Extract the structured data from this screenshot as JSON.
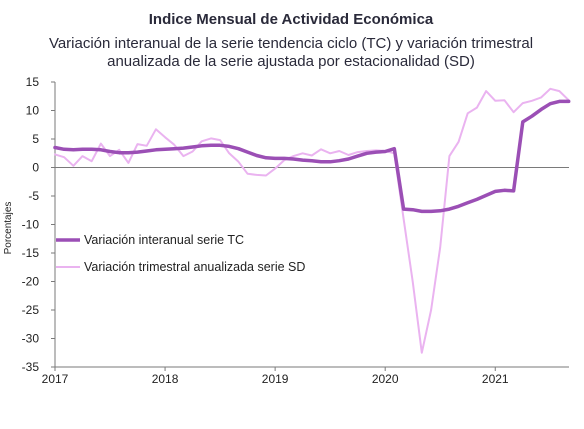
{
  "chart_data": {
    "type": "line",
    "title": "Indice Mensual de  Actividad Económica",
    "subtitle_lines": [
      "Variación interanual de la serie tendencia ciclo (TC) y variación trimestral",
      "anualizada de la serie ajustada por estacionalidad (SD)"
    ],
    "ylabel": "Porcentajes",
    "xlabel": "",
    "ylim": [
      -35,
      15
    ],
    "xlim": [
      2017,
      2021.67
    ],
    "yticks": [
      "15",
      "10",
      "5",
      "0",
      "-5",
      "-10",
      "-15",
      "-20",
      "-25",
      "-30",
      "-35"
    ],
    "xticks": [
      "2017",
      "2018",
      "2019",
      "2020",
      "2021"
    ],
    "grid": false,
    "legend_position": "middle-left",
    "series": [
      {
        "name": "Variación interanual serie TC",
        "color": "#9b4fb5",
        "values": [
          [
            2017.0,
            3.5
          ],
          [
            2017.083,
            3.2
          ],
          [
            2017.167,
            3.1
          ],
          [
            2017.25,
            3.2
          ],
          [
            2017.333,
            3.2
          ],
          [
            2017.417,
            3.1
          ],
          [
            2017.5,
            2.8
          ],
          [
            2017.583,
            2.6
          ],
          [
            2017.667,
            2.6
          ],
          [
            2017.75,
            2.7
          ],
          [
            2017.833,
            2.9
          ],
          [
            2017.917,
            3.1
          ],
          [
            2018.0,
            3.2
          ],
          [
            2018.083,
            3.3
          ],
          [
            2018.167,
            3.4
          ],
          [
            2018.25,
            3.6
          ],
          [
            2018.333,
            3.8
          ],
          [
            2018.417,
            3.9
          ],
          [
            2018.5,
            3.9
          ],
          [
            2018.583,
            3.7
          ],
          [
            2018.667,
            3.3
          ],
          [
            2018.75,
            2.7
          ],
          [
            2018.833,
            2.1
          ],
          [
            2018.917,
            1.7
          ],
          [
            2019.0,
            1.6
          ],
          [
            2019.083,
            1.6
          ],
          [
            2019.167,
            1.5
          ],
          [
            2019.25,
            1.3
          ],
          [
            2019.333,
            1.2
          ],
          [
            2019.417,
            1.0
          ],
          [
            2019.5,
            1.0
          ],
          [
            2019.583,
            1.2
          ],
          [
            2019.667,
            1.5
          ],
          [
            2019.75,
            2.0
          ],
          [
            2019.833,
            2.5
          ],
          [
            2019.917,
            2.7
          ],
          [
            2020.0,
            2.8
          ],
          [
            2020.083,
            3.3
          ],
          [
            2020.167,
            -7.3
          ],
          [
            2020.25,
            -7.4
          ],
          [
            2020.333,
            -7.7
          ],
          [
            2020.417,
            -7.7
          ],
          [
            2020.5,
            -7.6
          ],
          [
            2020.583,
            -7.3
          ],
          [
            2020.667,
            -6.8
          ],
          [
            2020.75,
            -6.2
          ],
          [
            2020.833,
            -5.6
          ],
          [
            2020.917,
            -4.9
          ],
          [
            2021.0,
            -4.2
          ],
          [
            2021.083,
            -4.0
          ],
          [
            2021.167,
            -4.1
          ],
          [
            2021.25,
            8.0
          ],
          [
            2021.333,
            9.0
          ],
          [
            2021.417,
            10.2
          ],
          [
            2021.5,
            11.2
          ],
          [
            2021.583,
            11.6
          ],
          [
            2021.667,
            11.6
          ]
        ]
      },
      {
        "name": "Variación trimestral anualizada serie SD",
        "color": "#eab3f0",
        "values": [
          [
            2017.0,
            2.3
          ],
          [
            2017.083,
            1.8
          ],
          [
            2017.167,
            0.3
          ],
          [
            2017.25,
            2.0
          ],
          [
            2017.333,
            1.1
          ],
          [
            2017.417,
            4.2
          ],
          [
            2017.5,
            2.0
          ],
          [
            2017.583,
            3.1
          ],
          [
            2017.667,
            0.8
          ],
          [
            2017.75,
            4.1
          ],
          [
            2017.833,
            3.8
          ],
          [
            2017.917,
            6.7
          ],
          [
            2018.0,
            5.3
          ],
          [
            2018.083,
            4.0
          ],
          [
            2018.167,
            2.0
          ],
          [
            2018.25,
            2.8
          ],
          [
            2018.333,
            4.6
          ],
          [
            2018.417,
            5.1
          ],
          [
            2018.5,
            4.8
          ],
          [
            2018.583,
            2.5
          ],
          [
            2018.667,
            1.0
          ],
          [
            2018.75,
            -1.1
          ],
          [
            2018.833,
            -1.3
          ],
          [
            2018.917,
            -1.4
          ],
          [
            2019.0,
            -0.2
          ],
          [
            2019.083,
            1.3
          ],
          [
            2019.167,
            2.0
          ],
          [
            2019.25,
            2.5
          ],
          [
            2019.333,
            2.1
          ],
          [
            2019.417,
            3.2
          ],
          [
            2019.5,
            2.5
          ],
          [
            2019.583,
            2.9
          ],
          [
            2019.667,
            2.2
          ],
          [
            2019.75,
            2.7
          ],
          [
            2019.833,
            2.9
          ],
          [
            2019.917,
            3.0
          ],
          [
            2020.0,
            2.9
          ],
          [
            2020.083,
            2.5
          ],
          [
            2020.167,
            -9.0
          ],
          [
            2020.25,
            -20.0
          ],
          [
            2020.333,
            -32.5
          ],
          [
            2020.417,
            -25.0
          ],
          [
            2020.5,
            -14.0
          ],
          [
            2020.583,
            2.0
          ],
          [
            2020.667,
            4.5
          ],
          [
            2020.75,
            9.5
          ],
          [
            2020.833,
            10.5
          ],
          [
            2020.917,
            13.4
          ],
          [
            2021.0,
            11.7
          ],
          [
            2021.083,
            11.8
          ],
          [
            2021.167,
            9.7
          ],
          [
            2021.25,
            11.3
          ],
          [
            2021.333,
            11.7
          ],
          [
            2021.417,
            12.3
          ],
          [
            2021.5,
            13.8
          ],
          [
            2021.583,
            13.4
          ],
          [
            2021.667,
            11.8
          ]
        ]
      }
    ]
  }
}
